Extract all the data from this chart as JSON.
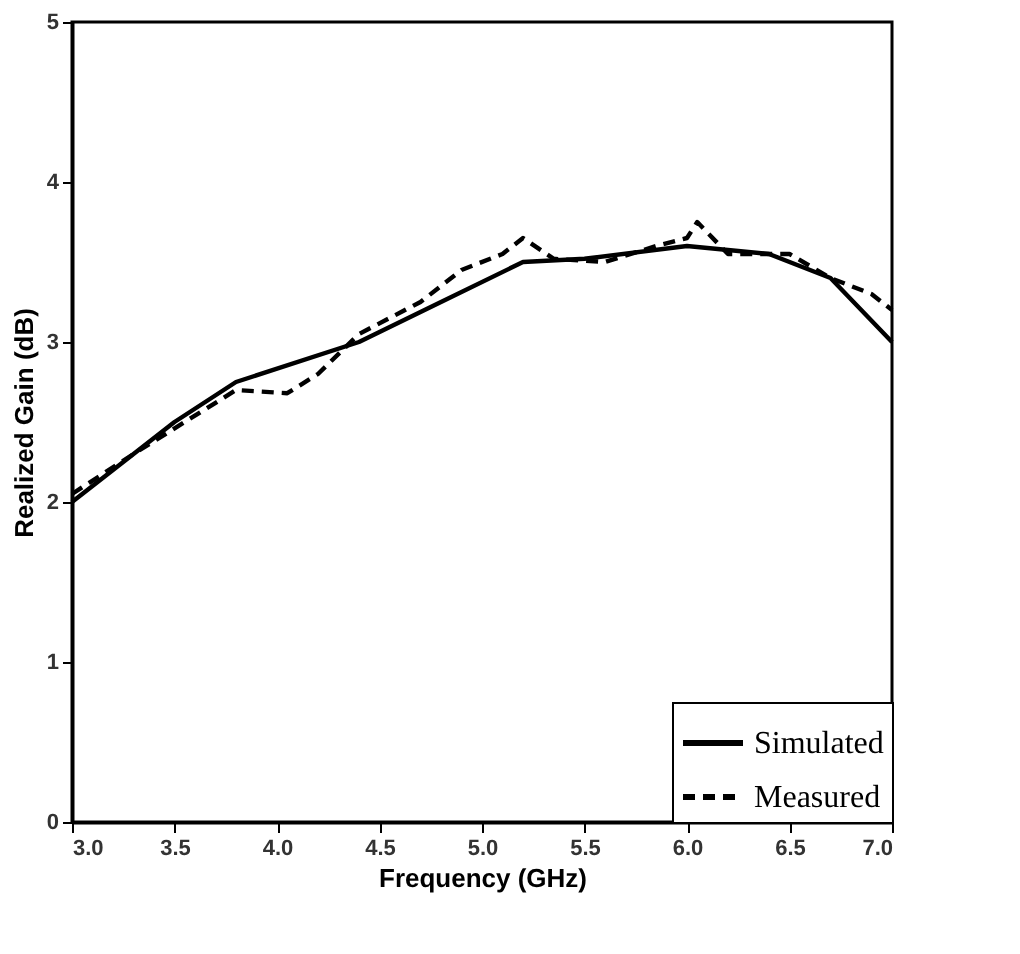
{
  "chart_data": {
    "type": "line",
    "xlabel": "Frequency (GHz)",
    "ylabel": "Realized Gain (dB)",
    "xlim": [
      3.0,
      7.0
    ],
    "ylim": [
      0,
      5
    ],
    "xticks": [
      {
        "value": 3.0,
        "label": "3.0"
      },
      3.5,
      {
        "value": 4.0,
        "label": "4.0"
      },
      4.5,
      {
        "value": 5.0,
        "label": "5.0"
      },
      5.5,
      {
        "value": 6.0,
        "label": "6.0"
      },
      6.5,
      {
        "value": 7.0,
        "label": "7.0"
      }
    ],
    "yticks": [
      0,
      1,
      2,
      3,
      4,
      5
    ],
    "grid": false,
    "legend": "bottom right",
    "series": [
      {
        "name": "Simulated",
        "color": "#000000",
        "line_style": "solid",
        "x": [
          3.0,
          3.5,
          3.8,
          4.4,
          4.8,
          5.2,
          5.5,
          6.0,
          6.4,
          6.7,
          7.0
        ],
        "values": [
          2.0,
          2.5,
          2.75,
          3.0,
          3.25,
          3.5,
          3.52,
          3.6,
          3.55,
          3.4,
          3.0
        ]
      },
      {
        "name": "Measured",
        "color": "#000000",
        "line_style": "dashed",
        "x": [
          3.0,
          3.3,
          3.55,
          3.8,
          4.05,
          4.2,
          4.4,
          4.7,
          4.9,
          5.1,
          5.2,
          5.35,
          5.6,
          5.85,
          6.0,
          6.05,
          6.2,
          6.5,
          6.7,
          6.9,
          7.0
        ],
        "values": [
          2.05,
          2.3,
          2.5,
          2.7,
          2.68,
          2.8,
          3.05,
          3.25,
          3.45,
          3.55,
          3.65,
          3.52,
          3.5,
          3.6,
          3.65,
          3.75,
          3.55,
          3.55,
          3.4,
          3.3,
          3.2
        ]
      }
    ]
  }
}
